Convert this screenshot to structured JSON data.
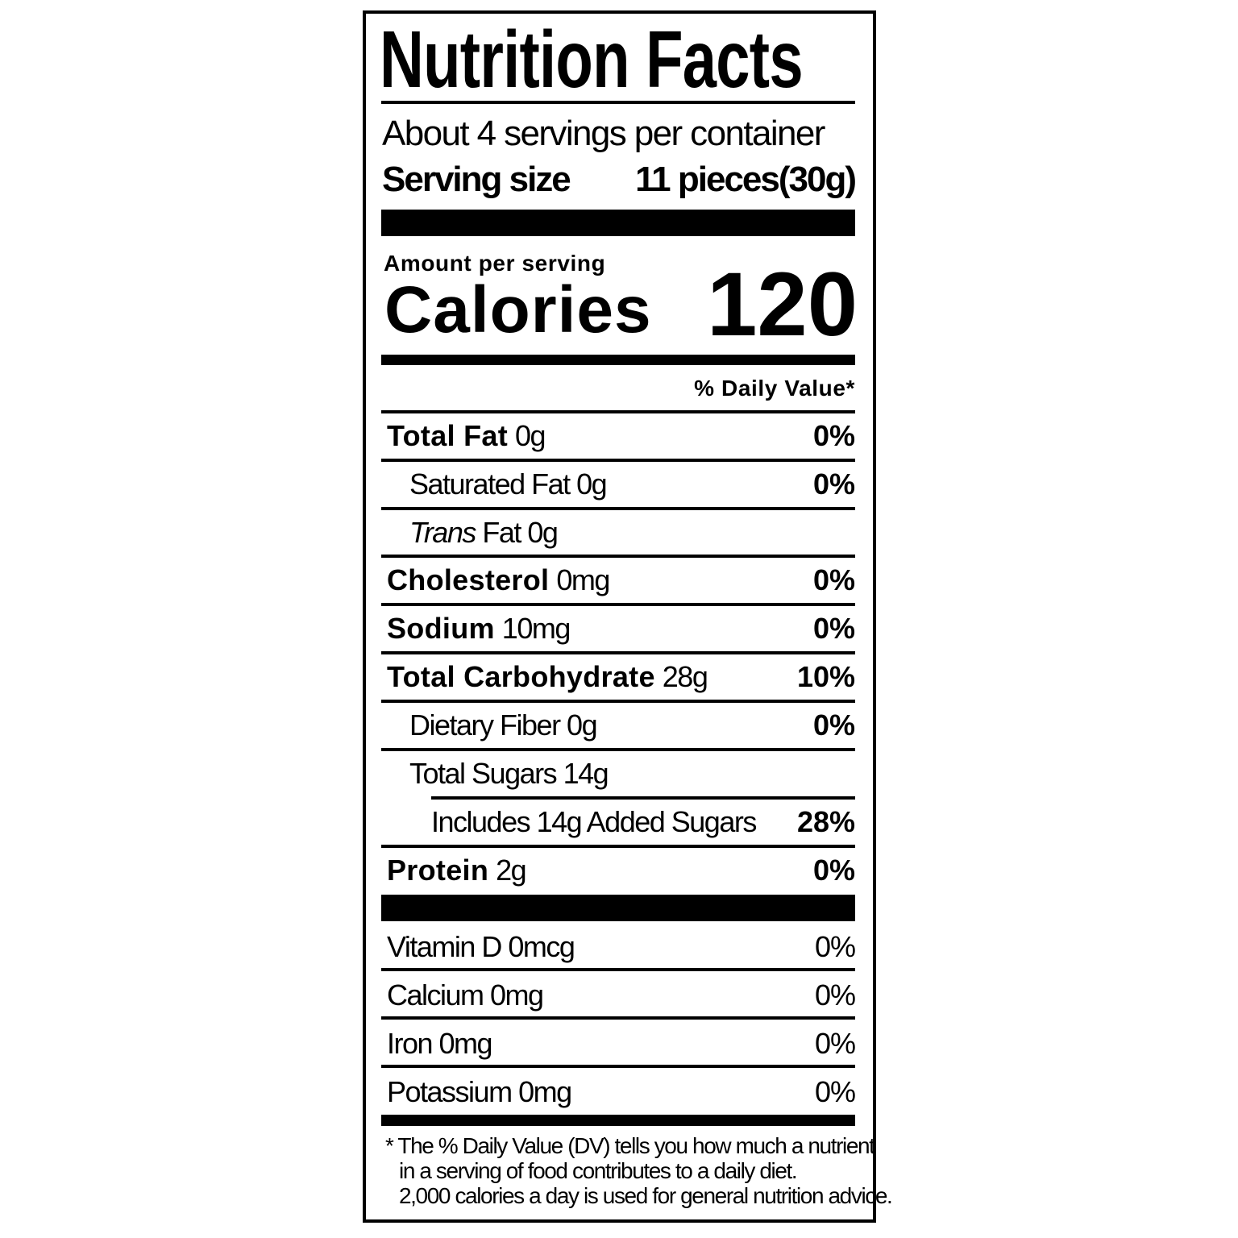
{
  "title": "Nutrition Facts",
  "servings_per_container": "About 4 servings per container",
  "serving_size": {
    "label": "Serving size",
    "value": "11 pieces(30g)"
  },
  "amount_per_serving": "Amount per serving",
  "calories": {
    "label": "Calories",
    "value": "120"
  },
  "daily_value_header": "% Daily Value*",
  "nutrients": [
    {
      "label": "Total Fat",
      "amount": "0g",
      "dv": "0%"
    },
    {
      "label": "Saturated Fat 0g",
      "dv": "0%"
    },
    {
      "label_italic": "Trans",
      "label": " Fat 0g"
    },
    {
      "label": "Cholesterol",
      "amount": "0mg",
      "dv": "0%"
    },
    {
      "label": "Sodium",
      "amount": "10mg",
      "dv": "0%"
    },
    {
      "label": "Total Carbohydrate",
      "amount": "28g",
      "dv": "10%"
    },
    {
      "label": "Dietary Fiber 0g",
      "dv": "0%"
    },
    {
      "label": "Total Sugars 14g"
    },
    {
      "label": "Includes 14g Added Sugars",
      "dv": "28%"
    },
    {
      "label": "Protein",
      "amount": "2g",
      "dv": "0%"
    }
  ],
  "vitamins": [
    {
      "label": "Vitamin D 0mcg",
      "dv": "0%"
    },
    {
      "label": "Calcium 0mg",
      "dv": "0%"
    },
    {
      "label": "Iron 0mg",
      "dv": "0%"
    },
    {
      "label": "Potassium 0mg",
      "dv": "0%"
    }
  ],
  "footnote": [
    "* The % Daily Value (DV) tells you how much a nutrient",
    "in a serving of food contributes to a daily diet.",
    "2,000 calories a day is used for general nutrition advice."
  ]
}
